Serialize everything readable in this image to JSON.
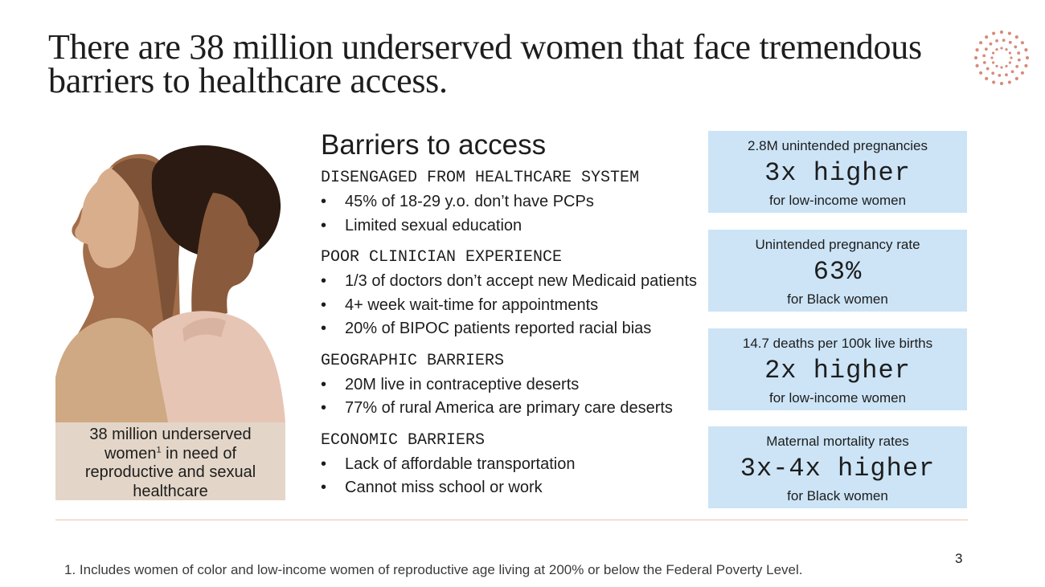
{
  "slide": {
    "title": "There are 38 million underserved women that face tremendous barriers to healthcare access.",
    "page_number": "3",
    "footnote": "1. Includes women of color and low-income women of reproductive age living at 200% or below the Federal Poverty Level.",
    "logo_color": "#d98a7b"
  },
  "photo": {
    "caption_pre": "38 million underserved women",
    "caption_sup": "1",
    "caption_post": " in need of reproductive and sexual healthcare"
  },
  "barriers": {
    "heading": "Barriers to access",
    "sections": [
      {
        "title": "DISENGAGED FROM HEALTHCARE SYSTEM",
        "items": [
          "45% of 18-29 y.o. don’t have PCPs",
          "Limited sexual education"
        ]
      },
      {
        "title": "POOR CLINICIAN EXPERIENCE",
        "items": [
          "1/3 of doctors don’t accept new Medicaid patients",
          "4+ week wait-time for appointments",
          "20% of BIPOC patients reported racial bias"
        ]
      },
      {
        "title": "GEOGRAPHIC BARRIERS",
        "items": [
          "20M live in contraceptive deserts",
          "77% of rural America are primary care deserts"
        ]
      },
      {
        "title": "ECONOMIC BARRIERS",
        "items": [
          "Lack of affordable transportation",
          "Cannot miss school or work"
        ]
      }
    ]
  },
  "stats": [
    {
      "top": "2.8M unintended pregnancies",
      "big": "3x higher",
      "bottom": "for low-income women"
    },
    {
      "top": "Unintended pregnancy rate",
      "big": "63%",
      "bottom": "for Black women"
    },
    {
      "top": "14.7 deaths per 100k live births",
      "big": "2x higher",
      "bottom": "for low-income women"
    },
    {
      "top": "Maternal mortality rates",
      "big": "3x-4x higher",
      "bottom": "for Black women"
    }
  ]
}
